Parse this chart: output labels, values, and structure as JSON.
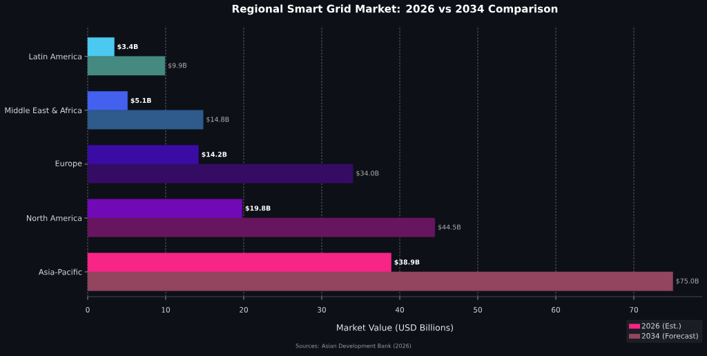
{
  "chart_data": {
    "type": "bar",
    "orientation": "horizontal",
    "title": "Regional Smart Grid Market: 2026 vs 2034 Comparison",
    "xlabel": "Market Value (USD Billions)",
    "categories": [
      "Latin America",
      "Middle East & Africa",
      "Europe",
      "North America",
      "Asia-Pacific"
    ],
    "series": [
      {
        "name": "2026 (Est.)",
        "color": "#f72585",
        "colors": [
          "#4cc9f0",
          "#4361ee",
          "#3a0ca3",
          "#7209b7",
          "#f72585"
        ],
        "values": [
          3.4,
          5.1,
          14.2,
          19.8,
          38.9
        ],
        "value_labels": [
          "$3.4B",
          "$5.1B",
          "$14.2B",
          "$19.8B",
          "$38.9B"
        ]
      },
      {
        "name": "2034 (Forecast)",
        "color": "#93445f",
        "colors": [
          "#458a80",
          "#2e5a8c",
          "#350c63",
          "#68155f",
          "#93445f"
        ],
        "values": [
          9.9,
          14.8,
          34.0,
          44.5,
          75.0
        ],
        "value_labels": [
          "$9.9B",
          "$14.8B",
          "$34.0B",
          "$44.5B",
          "$75.0B"
        ]
      }
    ],
    "xlim": [
      0,
      78.75
    ],
    "xticks": [
      0,
      10,
      20,
      30,
      40,
      50,
      60,
      70
    ],
    "grid": "x",
    "legend": "bottom right",
    "annotations": [
      "Sources: Asian Development Bank (2026)"
    ]
  }
}
